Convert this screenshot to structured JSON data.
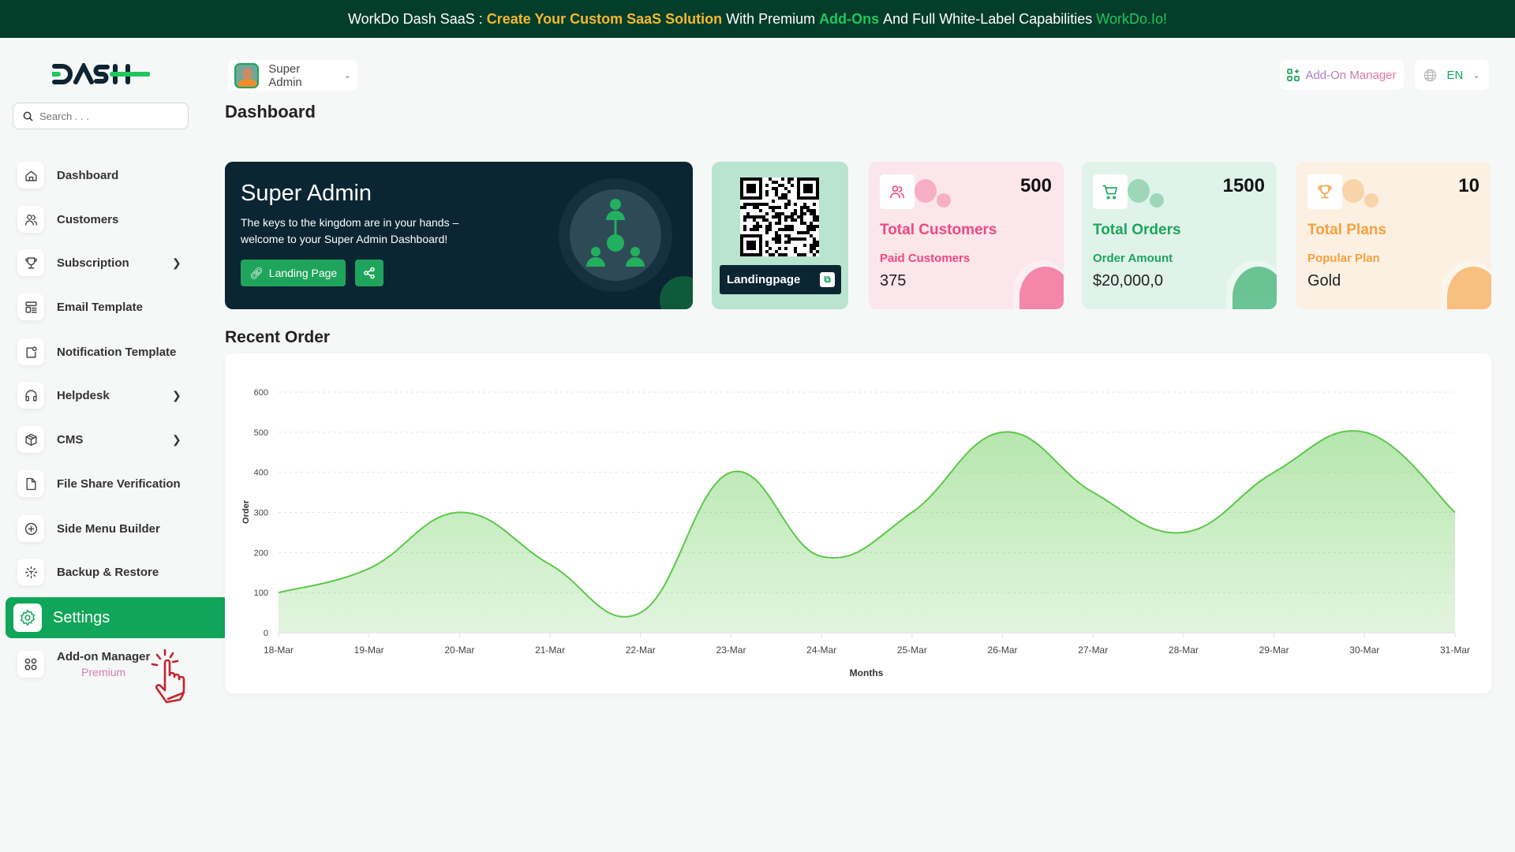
{
  "banner": {
    "prefix": "WorkDo Dash SaaS :",
    "highlight1": "Create Your Custom SaaS Solution",
    "mid": "With Premium",
    "highlight2": "Add-Ons",
    "mid2": "And Full White-Label Capabilities",
    "link": "WorkDo.Io!"
  },
  "logo": {
    "text": "DASH"
  },
  "search": {
    "placeholder": "Search . . ."
  },
  "sidebar": {
    "items": [
      {
        "label": "Dashboard",
        "icon": "home-icon"
      },
      {
        "label": "Customers",
        "icon": "users-icon"
      },
      {
        "label": "Subscription",
        "icon": "trophy-icon",
        "has_submenu": true
      },
      {
        "label": "Email Template",
        "icon": "template-icon"
      },
      {
        "label": "Notification Template",
        "icon": "notification-icon"
      },
      {
        "label": "Helpdesk",
        "icon": "headphones-icon",
        "has_submenu": true
      },
      {
        "label": "CMS",
        "icon": "package-icon",
        "has_submenu": true
      },
      {
        "label": "File Share Verification",
        "icon": "file-icon"
      },
      {
        "label": "Side Menu Builder",
        "icon": "plus-circle-icon"
      },
      {
        "label": "Backup & Restore",
        "icon": "backup-icon"
      }
    ],
    "settings": {
      "label": "Settings",
      "icon": "gear-icon",
      "active": true
    },
    "addon": {
      "label": "Add-on Manager",
      "badge": "Premium",
      "icon": "apps-icon"
    }
  },
  "header": {
    "user": "Super Admin",
    "title": "Dashboard",
    "addon_button": "Add-On Manager",
    "language": "EN"
  },
  "hero": {
    "title": "Super Admin",
    "text": "The keys to the kingdom are in your hands – welcome to your Super Admin Dashboard!",
    "landing_button": "Landing Page"
  },
  "qr": {
    "label": "Landingpage"
  },
  "stats": [
    {
      "count": "500",
      "title": "Total Customers",
      "sub": "Paid Customers",
      "value": "375",
      "color": "#f0487f",
      "bg": "#fbe6ec",
      "icon": "users-icon"
    },
    {
      "count": "1500",
      "title": "Total Orders",
      "sub": "Order Amount",
      "value": "$20,000,0",
      "color": "#1fa45c",
      "bg": "#e0f3ea",
      "icon": "cart-icon"
    },
    {
      "count": "10",
      "title": "Total Plans",
      "sub": "Popular Plan",
      "value": "Gold",
      "color": "#f5a142",
      "bg": "#fbf0e2",
      "icon": "trophy-icon"
    }
  ],
  "recent": {
    "title": "Recent Order"
  },
  "chart_data": {
    "type": "area",
    "categories": [
      "18-Mar",
      "19-Mar",
      "20-Mar",
      "21-Mar",
      "22-Mar",
      "23-Mar",
      "24-Mar",
      "25-Mar",
      "26-Mar",
      "27-Mar",
      "28-Mar",
      "29-Mar",
      "30-Mar",
      "31-Mar"
    ],
    "values": [
      100,
      160,
      300,
      170,
      50,
      400,
      190,
      300,
      500,
      350,
      250,
      400,
      500,
      300
    ],
    "xlabel": "Months",
    "ylabel": "Order",
    "ylim": [
      0,
      600
    ],
    "yticks": [
      "0",
      "100",
      "200",
      "300",
      "400",
      "500",
      "600"
    ],
    "grid": true,
    "color": "#5cc84a"
  }
}
